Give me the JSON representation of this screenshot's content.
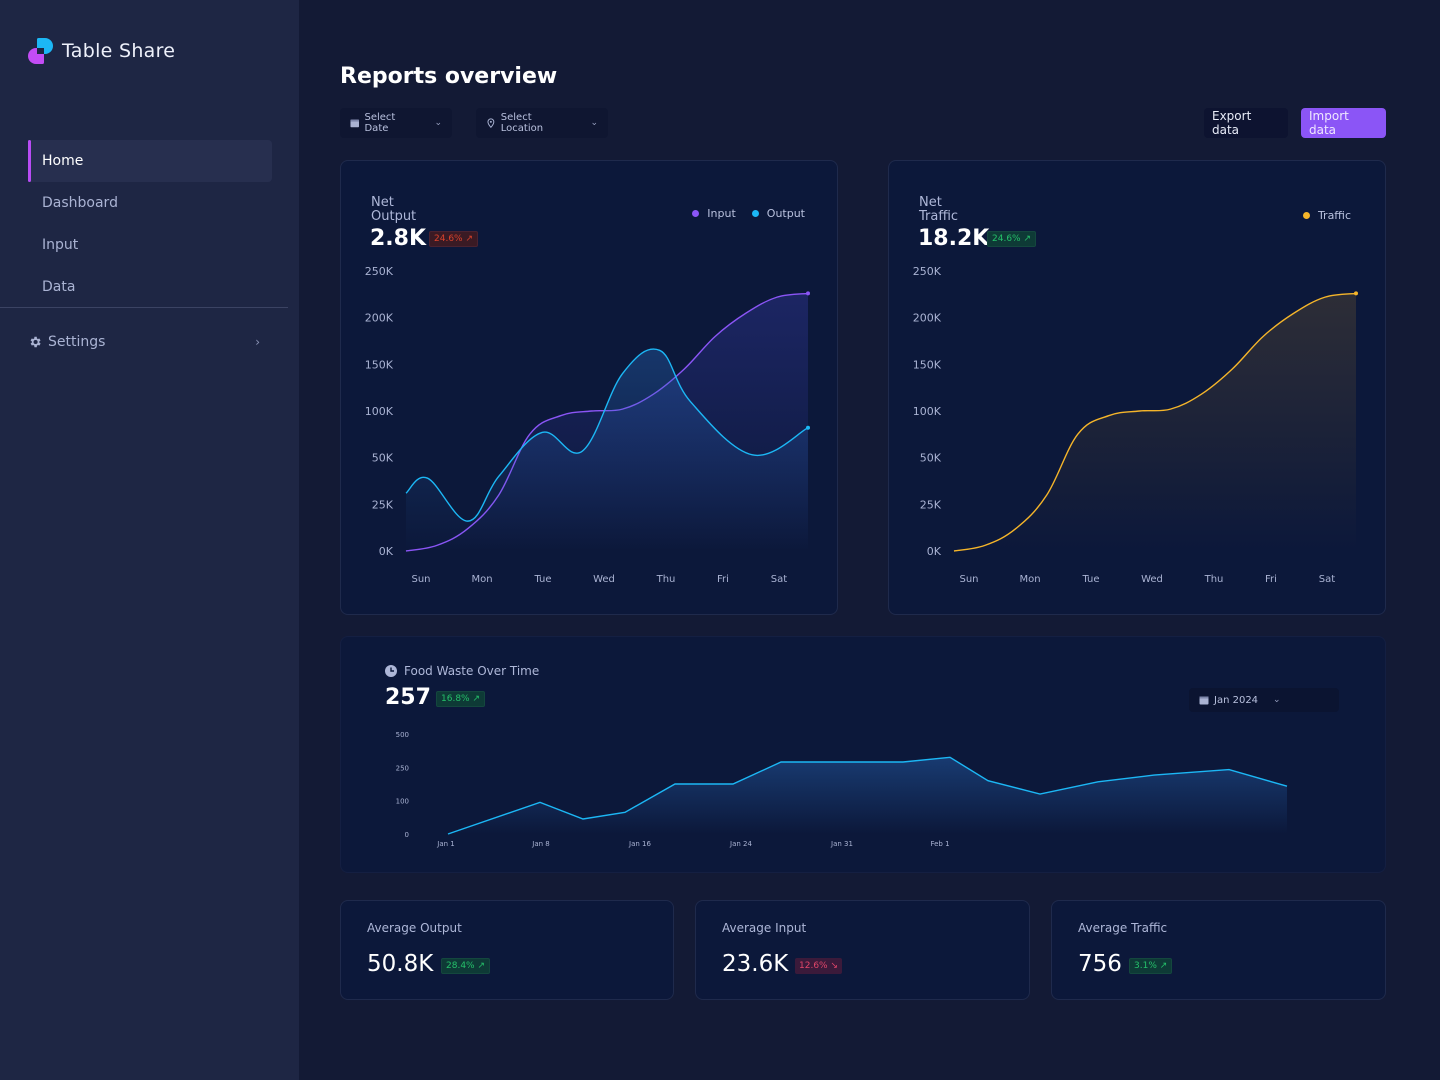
{
  "app": {
    "name": "Table Share"
  },
  "sidebar": {
    "items": [
      {
        "label": "Home",
        "active": true
      },
      {
        "label": "Dashboard",
        "active": false
      },
      {
        "label": "Input",
        "active": false
      },
      {
        "label": "Data",
        "active": false
      }
    ],
    "settings_label": "Settings"
  },
  "header": {
    "title": "Reports overview",
    "date_select": "Select Date",
    "location_select": "Select Location",
    "export_label": "Export data",
    "import_label": "Import data"
  },
  "colors": {
    "accent": "#8b55f6",
    "input_series": "#8b55f6",
    "output_series": "#1cb7f5",
    "traffic_series": "#f5b52a",
    "waste_series": "#1cb7f5",
    "positive": "#25c06a",
    "negative": "#d9422c"
  },
  "net_output": {
    "title_line1": "Net",
    "title_line2": "Output",
    "value": "2.8K",
    "change": "24.6% ↗",
    "legend": [
      "Input",
      "Output"
    ]
  },
  "net_traffic": {
    "title_line1": "Net",
    "title_line2": "Traffic",
    "value": "18.2K",
    "change": "24.6% ↗",
    "legend": [
      "Traffic"
    ]
  },
  "food_waste": {
    "title": "Food Waste Over Time",
    "value": "257",
    "change": "16.8% ↗",
    "period": "Jan 2024"
  },
  "stats": [
    {
      "label": "Average Output",
      "value": "50.8K",
      "change": "28.4% ↗",
      "trend": "up"
    },
    {
      "label": "Average Input",
      "value": "23.6K",
      "change": "12.6% ↘",
      "trend": "down"
    },
    {
      "label": "Average Traffic",
      "value": "756",
      "change": "3.1% ↗",
      "trend": "up"
    }
  ],
  "chart_data": [
    {
      "type": "area",
      "title": "Net Output",
      "categories": [
        "Sun",
        "Mon",
        "Tue",
        "Wed",
        "Thu",
        "Fri",
        "Sat"
      ],
      "y_ticks": [
        "0K",
        "25K",
        "50K",
        "100K",
        "150K",
        "200K",
        "250K"
      ],
      "y_tick_values": [
        0,
        25000,
        50000,
        100000,
        150000,
        200000,
        250000
      ],
      "series": [
        {
          "name": "Input",
          "x": [
            0,
            0.5,
            1,
            1.5,
            2,
            2.5,
            3,
            3.5,
            4,
            4.5,
            5,
            5.5,
            6,
            6.5
          ],
          "values": [
            0,
            3000,
            12000,
            30000,
            75000,
            95000,
            100000,
            102000,
            118000,
            145000,
            180000,
            205000,
            222000,
            226000
          ]
        },
        {
          "name": "Output",
          "x": [
            0,
            0.35,
            1,
            1.5,
            2.2,
            2.85,
            3.5,
            4.1,
            4.6,
            5.6,
            6.5
          ],
          "values": [
            31000,
            39000,
            16000,
            40000,
            77000,
            57000,
            140000,
            165000,
            110000,
            53000,
            82000
          ]
        }
      ],
      "legend": "top-right",
      "grid": false
    },
    {
      "type": "area",
      "title": "Net Traffic",
      "categories": [
        "Sun",
        "Mon",
        "Tue",
        "Wed",
        "Thu",
        "Fri",
        "Sat"
      ],
      "y_ticks": [
        "0K",
        "25K",
        "50K",
        "100K",
        "150K",
        "200K",
        "250K"
      ],
      "y_tick_values": [
        0,
        25000,
        50000,
        100000,
        150000,
        200000,
        250000
      ],
      "series": [
        {
          "name": "Traffic",
          "x": [
            0,
            0.5,
            1,
            1.5,
            2,
            2.5,
            3,
            3.5,
            4,
            4.5,
            5,
            5.5,
            6,
            6.5
          ],
          "values": [
            0,
            3000,
            12000,
            30000,
            75000,
            95000,
            100000,
            102000,
            118000,
            145000,
            180000,
            205000,
            222000,
            226000
          ]
        }
      ],
      "legend": "top-right",
      "grid": false
    },
    {
      "type": "area",
      "title": "Food Waste Over Time",
      "x_ticks": [
        "Jan 1",
        "Jan 8",
        "Jan 16",
        "Jan 24",
        "Jan 31",
        "Feb 1"
      ],
      "y_ticks": [
        "0",
        "100",
        "250",
        "500"
      ],
      "y_tick_values": [
        0,
        100,
        250,
        500
      ],
      "series": [
        {
          "name": "Food Waste",
          "values": [
            0,
            95,
            45,
            65,
            175,
            175,
            290,
            290,
            290,
            325,
            190,
            130,
            185,
            215,
            240,
            165
          ]
        }
      ],
      "legend": "none",
      "grid": false
    }
  ]
}
